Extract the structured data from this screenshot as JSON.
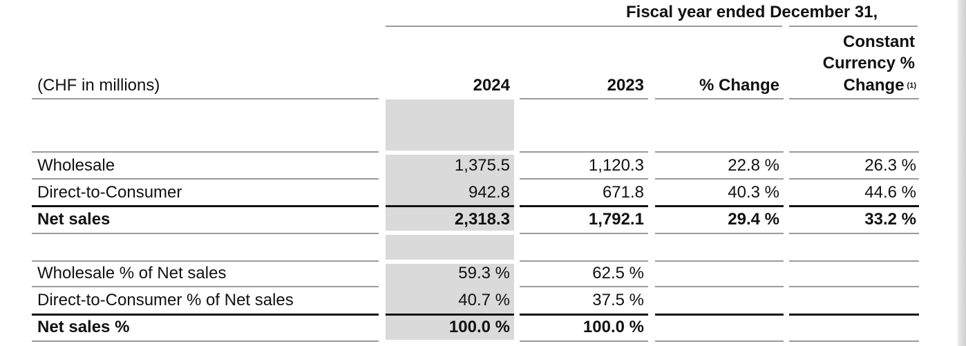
{
  "header": {
    "period": "Fiscal year ended December 31,",
    "units_label": "(CHF in millions)",
    "columns": {
      "y2024": "2024",
      "y2023": "2023",
      "pct_change": "% Change",
      "cc_line1": "Constant",
      "cc_line2": "Currency %",
      "cc_line3": "Change",
      "cc_note": "(1)"
    }
  },
  "rows": [
    {
      "label": "Wholesale",
      "y2024": "1,375.5",
      "y2023": "1,120.3",
      "pct_change": "22.8 %",
      "cc_change": "26.3 %"
    },
    {
      "label": "Direct-to-Consumer",
      "y2024": "942.8",
      "y2023": "671.8",
      "pct_change": "40.3 %",
      "cc_change": "44.6 %"
    },
    {
      "label": "Net sales",
      "y2024": "2,318.3",
      "y2023": "1,792.1",
      "pct_change": "29.4 %",
      "cc_change": "33.2 %"
    },
    {
      "label": "Wholesale % of Net sales",
      "y2024": "59.3 %",
      "y2023": "62.5 %"
    },
    {
      "label": "Direct-to-Consumer % of Net sales",
      "y2024": "40.7 %",
      "y2023": "37.5 %"
    },
    {
      "label": "Net sales %",
      "y2024": "100.0 %",
      "y2023": "100.0 %"
    }
  ]
}
